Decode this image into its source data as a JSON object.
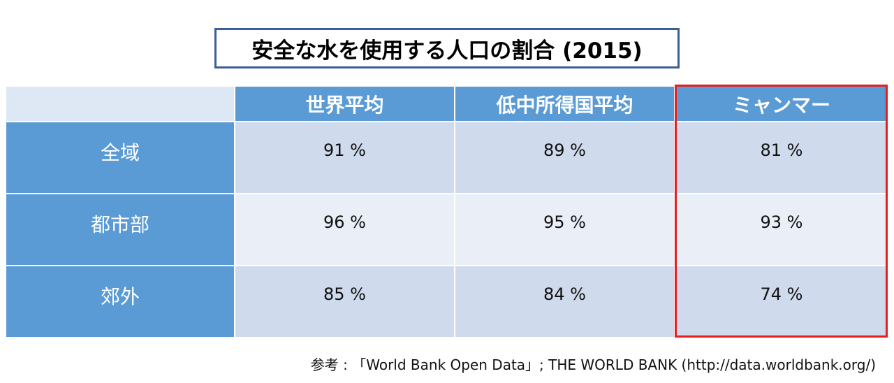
{
  "title": "安全な水を使用する人口の割合 (2015)",
  "chart_data": {
    "type": "table",
    "title": "安全な水を使用する人口の割合 (2015)",
    "columns": [
      "世界平均",
      "低中所得国平均",
      "ミャンマー"
    ],
    "rows": [
      {
        "label": "全域",
        "values": [
          "91 %",
          "89 %",
          "81 %"
        ]
      },
      {
        "label": "都市部",
        "values": [
          "96 %",
          "95 %",
          "93 %"
        ]
      },
      {
        "label": "郊外",
        "values": [
          "85 %",
          "84 %",
          "74 %"
        ]
      }
    ],
    "highlighted_column": "ミャンマー"
  },
  "source": "参考 : 「World Bank Open Data」; THE WORLD BANK (http://data.worldbank.org/)",
  "colors": {
    "header_bg": "#5b9bd5",
    "corner_bg": "#dde8f4",
    "row_odd_bg": "#cfdaec",
    "row_even_bg": "#e9eef7",
    "highlight_border": "#e51f1f",
    "title_border": "#3a5f9a"
  }
}
